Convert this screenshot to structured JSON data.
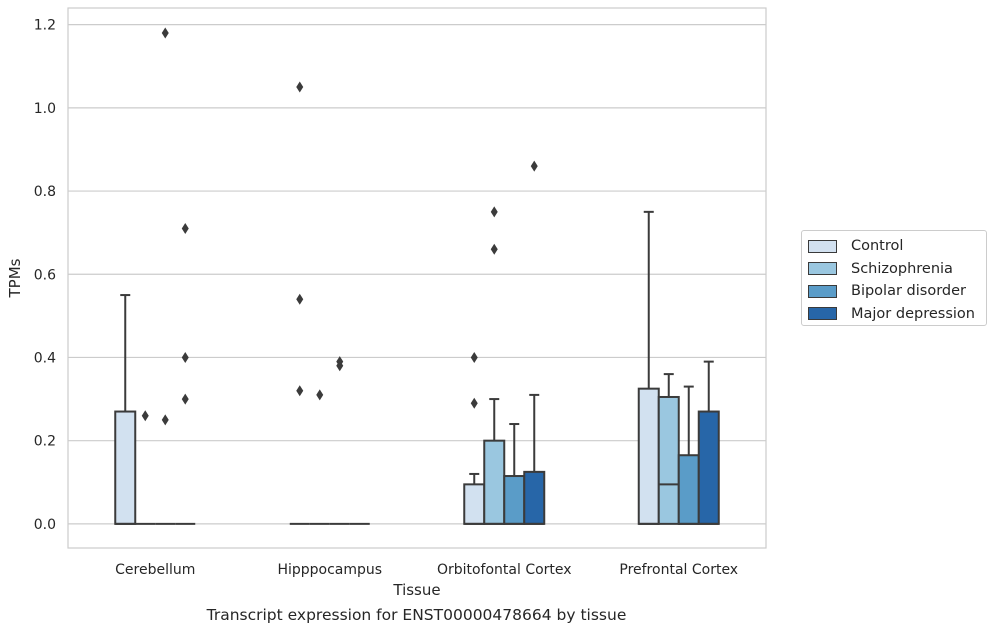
{
  "chart_data": {
    "type": "box",
    "categories": [
      "Cerebellum",
      "Hipppocampus",
      "Orbitofontal Cortex",
      "Prefrontal Cortex"
    ],
    "xlabel": "Tissue",
    "ylabel": "TPMs",
    "ylim": [
      -0.058,
      1.24
    ],
    "yticks": [
      "0.0",
      "0.2",
      "0.4",
      "0.6",
      "0.8",
      "1.0",
      "1.2"
    ],
    "ytick_values": [
      0.0,
      0.2,
      0.4,
      0.6,
      0.8,
      1.0,
      1.2
    ],
    "grid": true,
    "legend_position": "right",
    "series": [
      {
        "name": "Control",
        "color": "#d2e1f0",
        "boxes": [
          {
            "whislo": 0.0,
            "q1": 0.0,
            "med": 0.0,
            "q3": 0.27,
            "whishi": 0.55,
            "fliers": []
          },
          {
            "whislo": 0.0,
            "q1": 0.0,
            "med": 0.0,
            "q3": 0.0,
            "whishi": 0.0,
            "fliers": [
              1.05,
              0.54,
              0.32
            ]
          },
          {
            "whislo": 0.0,
            "q1": 0.0,
            "med": 0.0,
            "q3": 0.095,
            "whishi": 0.12,
            "fliers": [
              0.4,
              0.29
            ]
          },
          {
            "whislo": 0.0,
            "q1": 0.0,
            "med": 0.0,
            "q3": 0.325,
            "whishi": 0.75,
            "fliers": []
          }
        ]
      },
      {
        "name": "Schizophrenia",
        "color": "#9ac7e0",
        "boxes": [
          {
            "whislo": 0.0,
            "q1": 0.0,
            "med": 0.0,
            "q3": 0.0,
            "whishi": 0.0,
            "fliers": [
              0.26
            ]
          },
          {
            "whislo": 0.0,
            "q1": 0.0,
            "med": 0.0,
            "q3": 0.0,
            "whishi": 0.0,
            "fliers": [
              0.31
            ]
          },
          {
            "whislo": 0.0,
            "q1": 0.0,
            "med": 0.0,
            "q3": 0.2,
            "whishi": 0.3,
            "fliers": [
              0.75,
              0.66
            ]
          },
          {
            "whislo": 0.0,
            "q1": 0.0,
            "med": 0.095,
            "q3": 0.305,
            "whishi": 0.36,
            "fliers": []
          }
        ]
      },
      {
        "name": "Bipolar disorder",
        "color": "#5a9cc8",
        "boxes": [
          {
            "whislo": 0.0,
            "q1": 0.0,
            "med": 0.0,
            "q3": 0.0,
            "whishi": 0.0,
            "fliers": [
              1.18,
              0.25
            ]
          },
          {
            "whislo": 0.0,
            "q1": 0.0,
            "med": 0.0,
            "q3": 0.0,
            "whishi": 0.0,
            "fliers": [
              0.39,
              0.38
            ]
          },
          {
            "whislo": 0.0,
            "q1": 0.0,
            "med": 0.0,
            "q3": 0.115,
            "whishi": 0.24,
            "fliers": []
          },
          {
            "whislo": 0.0,
            "q1": 0.0,
            "med": 0.0,
            "q3": 0.165,
            "whishi": 0.33,
            "fliers": []
          }
        ]
      },
      {
        "name": "Major depression",
        "color": "#2766a8",
        "boxes": [
          {
            "whislo": 0.0,
            "q1": 0.0,
            "med": 0.0,
            "q3": 0.0,
            "whishi": 0.0,
            "fliers": [
              0.71,
              0.4,
              0.3
            ]
          },
          {
            "whislo": 0.0,
            "q1": 0.0,
            "med": 0.0,
            "q3": 0.0,
            "whishi": 0.0,
            "fliers": []
          },
          {
            "whislo": 0.0,
            "q1": 0.0,
            "med": 0.0,
            "q3": 0.125,
            "whishi": 0.31,
            "fliers": [
              0.86
            ]
          },
          {
            "whislo": 0.0,
            "q1": 0.0,
            "med": 0.0,
            "q3": 0.27,
            "whishi": 0.39,
            "fliers": []
          }
        ]
      }
    ]
  },
  "caption": "Transcript expression for ENST00000478664 by tissue"
}
